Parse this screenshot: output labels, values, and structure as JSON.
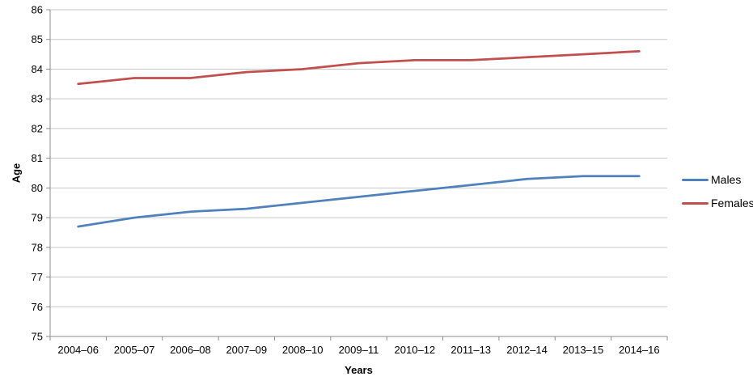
{
  "chart_data": {
    "type": "line",
    "title": "",
    "xlabel": "Years",
    "ylabel": "Age",
    "categories": [
      "2004–06",
      "2005–07",
      "2006–08",
      "2007–09",
      "2008–10",
      "2009–11",
      "2010–12",
      "2011–13",
      "2012–14",
      "2013–15",
      "2014–16"
    ],
    "series": [
      {
        "name": "Males",
        "color": "#4F81BD",
        "values": [
          78.7,
          79.0,
          79.2,
          79.3,
          79.5,
          79.7,
          79.9,
          80.1,
          80.3,
          80.4,
          80.4
        ]
      },
      {
        "name": "Females",
        "color": "#C0504D",
        "values": [
          83.5,
          83.7,
          83.7,
          83.9,
          84.0,
          84.2,
          84.3,
          84.3,
          84.4,
          84.5,
          84.6
        ]
      }
    ],
    "ylim": [
      75,
      86
    ],
    "ytick_step": 1,
    "grid": true,
    "legend_position": "right",
    "colors": {
      "gridline": "#C6C6C6",
      "axis": "#8C8C8C",
      "tick_label": "#000000"
    }
  }
}
